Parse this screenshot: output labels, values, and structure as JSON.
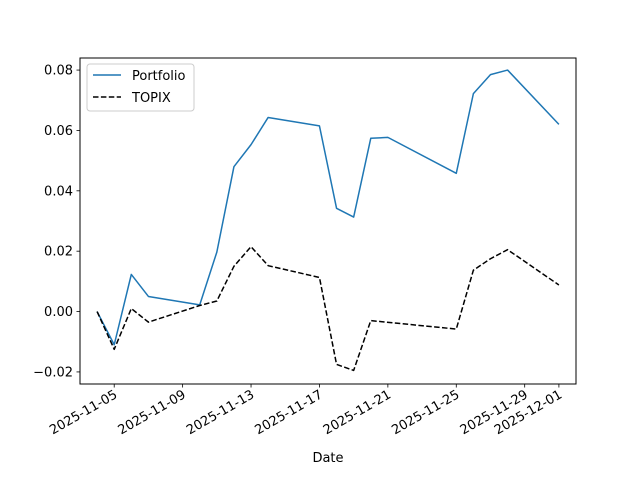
{
  "chart_data": {
    "type": "line",
    "title": "",
    "xlabel": "Date",
    "ylabel": "",
    "x_ticks": [
      "2025-11-05",
      "2025-11-09",
      "2025-11-13",
      "2025-11-17",
      "2025-11-21",
      "2025-11-25",
      "2025-11-29",
      "2025-12-01"
    ],
    "y_ticks": [
      "−0.02",
      "0.00",
      "0.02",
      "0.04",
      "0.06",
      "0.08"
    ],
    "y_tick_values": [
      -0.02,
      0.0,
      0.02,
      0.04,
      0.06,
      0.08
    ],
    "xlim": [
      "2025-11-03",
      "2025-12-02"
    ],
    "ylim": [
      -0.024,
      0.084
    ],
    "grid": false,
    "legend": "upper left",
    "series": [
      {
        "name": "Portfolio",
        "color": "#1f77b4",
        "style": "solid",
        "points": [
          [
            "2025-11-04",
            0.0
          ],
          [
            "2025-11-05",
            -0.011
          ],
          [
            "2025-11-06",
            0.0123
          ],
          [
            "2025-11-07",
            0.005
          ],
          [
            "2025-11-10",
            0.0022
          ],
          [
            "2025-11-11",
            0.0197
          ],
          [
            "2025-11-12",
            0.048
          ],
          [
            "2025-11-13",
            0.0553
          ],
          [
            "2025-11-14",
            0.0643
          ],
          [
            "2025-11-17",
            0.0615
          ],
          [
            "2025-11-18",
            0.0342
          ],
          [
            "2025-11-19",
            0.0313
          ],
          [
            "2025-11-20",
            0.0574
          ],
          [
            "2025-11-21",
            0.0577
          ],
          [
            "2025-11-25",
            0.0458
          ],
          [
            "2025-11-26",
            0.0722
          ],
          [
            "2025-11-27",
            0.0785
          ],
          [
            "2025-11-28",
            0.08
          ],
          [
            "2025-12-01",
            0.062
          ]
        ]
      },
      {
        "name": "TOPIX",
        "color": "#000000",
        "style": "dashed",
        "points": [
          [
            "2025-11-04",
            0.0
          ],
          [
            "2025-11-05",
            -0.0125
          ],
          [
            "2025-11-06",
            0.001
          ],
          [
            "2025-11-07",
            -0.0035
          ],
          [
            "2025-11-10",
            0.002
          ],
          [
            "2025-11-11",
            0.0035
          ],
          [
            "2025-11-12",
            0.015
          ],
          [
            "2025-11-13",
            0.0215
          ],
          [
            "2025-11-14",
            0.0152
          ],
          [
            "2025-11-17",
            0.0113
          ],
          [
            "2025-11-18",
            -0.0175
          ],
          [
            "2025-11-19",
            -0.0195
          ],
          [
            "2025-11-20",
            -0.003
          ],
          [
            "2025-11-25",
            -0.0058
          ],
          [
            "2025-11-26",
            0.0137
          ],
          [
            "2025-11-27",
            0.0175
          ],
          [
            "2025-11-28",
            0.0205
          ],
          [
            "2025-12-01",
            0.0088
          ]
        ]
      }
    ]
  }
}
